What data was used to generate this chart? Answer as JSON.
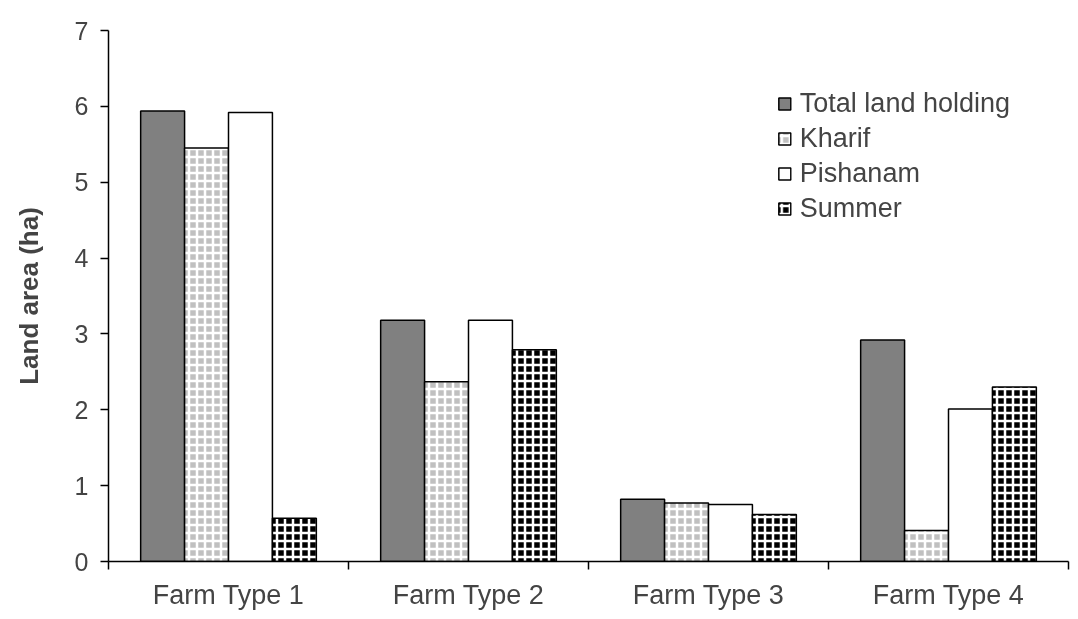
{
  "chart_data": {
    "type": "bar",
    "ylabel": "Land area (ha)",
    "categories": [
      "Farm Type 1",
      "Farm Type 2",
      "Farm Type 3",
      "Farm Type 4"
    ],
    "series": [
      {
        "name": "Total land holding",
        "color": "#808080",
        "values": [
          5.94,
          3.18,
          0.82,
          2.92
        ]
      },
      {
        "name": "Kharif",
        "color": "#c0c0c0",
        "values": [
          5.45,
          2.37,
          0.77,
          0.41
        ]
      },
      {
        "name": "Pishanam",
        "color": "#ffffff",
        "values": [
          5.92,
          3.18,
          0.75,
          2.01
        ]
      },
      {
        "name": "Summer",
        "color": "#000000",
        "values": [
          0.57,
          2.79,
          0.62,
          2.3
        ]
      }
    ],
    "ylim": [
      0,
      7
    ],
    "yticks": [
      0,
      1,
      2,
      3,
      4,
      5,
      6,
      7
    ],
    "legend": "top right"
  }
}
